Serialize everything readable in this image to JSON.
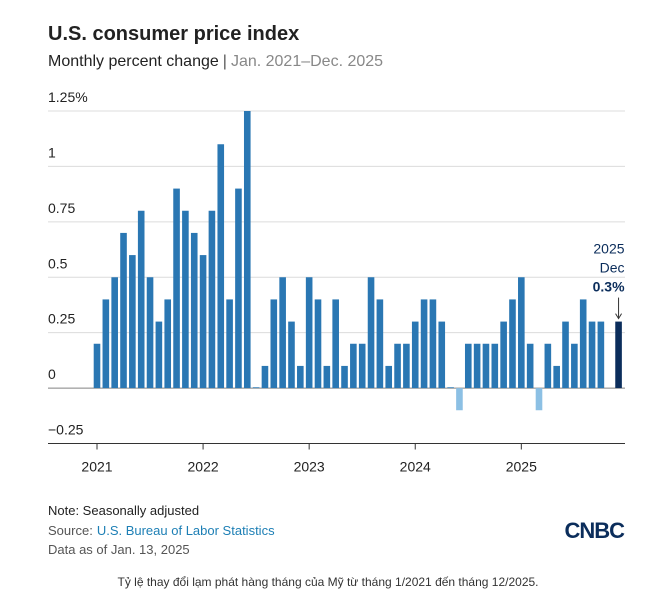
{
  "chart_data": {
    "type": "bar",
    "title": "U.S. consumer price index",
    "subtitle": "Monthly percent change",
    "subtitle_range": "Jan. 2021–Dec. 2025",
    "categories": [
      "2021",
      null,
      null,
      null,
      null,
      null,
      null,
      null,
      null,
      null,
      null,
      null,
      "2022",
      null,
      null,
      null,
      null,
      null,
      null,
      null,
      null,
      null,
      null,
      null,
      "2023",
      null,
      null,
      null,
      null,
      null,
      null,
      null,
      null,
      null,
      null,
      null,
      "2024",
      null,
      null,
      null,
      null,
      null,
      null,
      null,
      null,
      null,
      null,
      null,
      "2025",
      null,
      null,
      null,
      null,
      null,
      null,
      null,
      null,
      null,
      null,
      null
    ],
    "values": [
      0.2,
      0.4,
      0.5,
      0.7,
      0.6,
      0.8,
      0.5,
      0.3,
      0.4,
      0.9,
      0.8,
      0.7,
      0.6,
      0.8,
      1.1,
      0.4,
      0.9,
      1.25,
      0.0,
      0.1,
      0.4,
      0.5,
      0.3,
      0.1,
      0.5,
      0.4,
      0.1,
      0.4,
      0.1,
      0.2,
      0.2,
      0.5,
      0.4,
      0.1,
      0.2,
      0.2,
      0.3,
      0.4,
      0.4,
      0.3,
      0.0,
      -0.1,
      0.2,
      0.2,
      0.2,
      0.2,
      0.3,
      0.4,
      0.5,
      0.2,
      -0.1,
      0.2,
      0.1,
      0.3,
      0.2,
      0.4,
      0.3,
      0.3,
      null,
      0.3
    ],
    "value_labels": [
      null,
      null,
      null,
      null,
      null,
      null,
      null,
      null,
      null,
      null,
      null,
      null,
      null,
      null,
      null,
      null,
      null,
      null,
      null,
      null,
      null,
      null,
      null,
      null,
      null,
      null,
      null,
      null,
      null,
      null,
      null,
      null,
      null,
      null,
      null,
      null,
      null,
      null,
      null,
      null,
      null,
      null,
      null,
      null,
      null,
      null,
      null,
      null,
      null,
      null,
      null,
      null,
      null,
      null,
      null,
      null,
      null,
      null,
      null,
      "0.3%"
    ],
    "annotation": [
      "2025",
      "Dec"
    ],
    "color": "#2a77b3",
    "negative_color": "#8cc0e4",
    "highlight_color": "#0b2d5b",
    "ylim": [
      -0.25,
      1.25
    ],
    "yticks": [
      {
        "value": 1.25,
        "label": "1.25%"
      },
      1,
      0.75,
      0.5,
      0.25,
      0,
      {
        "value": -0.25,
        "label": "−0.25"
      }
    ],
    "grid": true
  },
  "footer": {
    "note": "Note: Seasonally adjusted",
    "source_label": "Source:",
    "source": "U.S. Bureau of Labor Statistics",
    "date": "Data as of Jan. 13, 2025",
    "logo": "CNBC",
    "caption": "Tỷ lệ thay đổi lạm phát hàng tháng của Mỹ từ tháng 1/2021 đến tháng 12/2025."
  }
}
